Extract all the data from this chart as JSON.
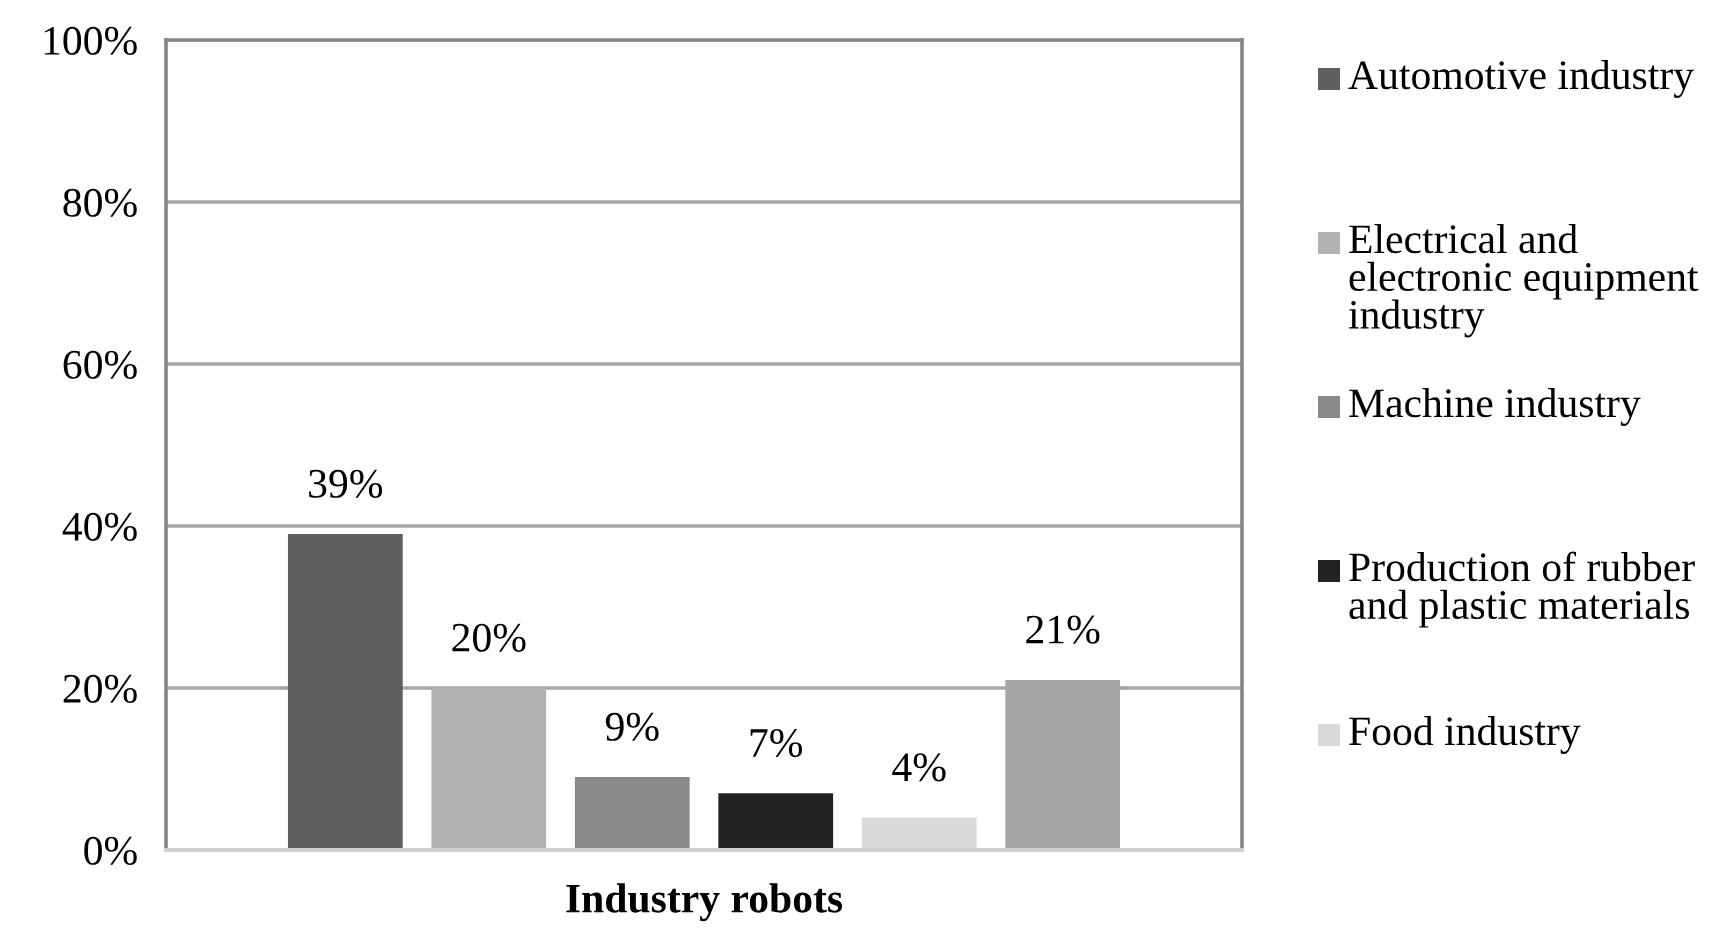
{
  "chart_data": {
    "type": "bar",
    "categories": [
      "Industry robots"
    ],
    "series": [
      {
        "name": "Automotive industry",
        "color": "#5f5f5f",
        "values": [
          39
        ],
        "value_labels": [
          "39%"
        ]
      },
      {
        "name": "Electrical and electronic equipment industry",
        "color": "#b2b2b2",
        "values": [
          20
        ],
        "value_labels": [
          "20%"
        ]
      },
      {
        "name": "Machine industry",
        "color": "#898989",
        "values": [
          9
        ],
        "value_labels": [
          "9%"
        ]
      },
      {
        "name": "Production of rubber and plastic materials",
        "color": "#222222",
        "values": [
          7
        ],
        "value_labels": [
          "7%"
        ]
      },
      {
        "name": "Food industry",
        "color": "#d9d9d9",
        "values": [
          4
        ],
        "value_labels": [
          "4%"
        ]
      },
      {
        "color": "#a6a6a6",
        "values": [
          21
        ],
        "value_labels": [
          "21%"
        ]
      }
    ],
    "ylim": [
      0,
      100
    ],
    "yticks": [
      {
        "value": 0,
        "label": "0%"
      },
      {
        "value": 20,
        "label": "20%"
      },
      {
        "value": 40,
        "label": "40%"
      },
      {
        "value": 60,
        "label": "60%"
      },
      {
        "value": 80,
        "label": "80%"
      },
      {
        "value": 100,
        "label": "100%"
      }
    ],
    "grid": "y",
    "legend": "right"
  }
}
